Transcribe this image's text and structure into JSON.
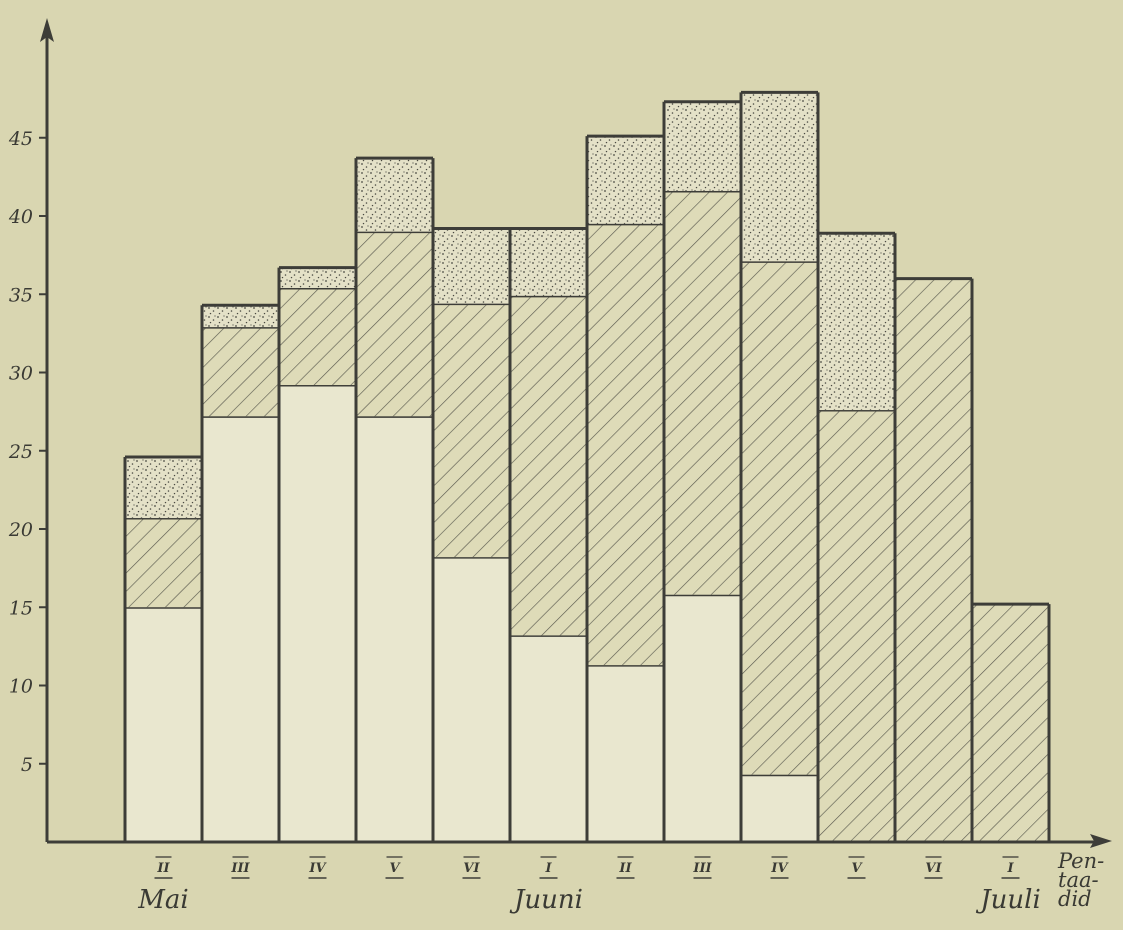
{
  "chart_data": {
    "type": "bar",
    "stacked": true,
    "title": "",
    "ylabel": "",
    "xlabel_lines": [
      "Pen-",
      "taa-",
      "did"
    ],
    "ylim": [
      0,
      50
    ],
    "yticks": [
      5,
      10,
      15,
      20,
      25,
      30,
      35,
      40,
      45
    ],
    "categories": [
      "II",
      "III",
      "IV",
      "V",
      "VI",
      "I",
      "II",
      "III",
      "IV",
      "V",
      "VI",
      "I"
    ],
    "month_labels": [
      {
        "label": "Mai",
        "at_category_index": 0
      },
      {
        "label": "Juuni",
        "at_category_index": 5
      },
      {
        "label": "Juuli",
        "at_category_index": 11
      }
    ],
    "series": [
      {
        "pattern": "plain",
        "values": [
          15,
          27.2,
          29.2,
          27.2,
          18.2,
          13.2,
          11.3,
          15.8,
          4.3,
          0,
          0,
          0
        ]
      },
      {
        "pattern": "hatched",
        "values": [
          5.7,
          5.7,
          6.2,
          11.8,
          16.2,
          21.7,
          28.2,
          25.8,
          32.8,
          27.6,
          36,
          15.2
        ]
      },
      {
        "pattern": "dotted",
        "values": [
          3.9,
          1.4,
          1.3,
          4.7,
          4.8,
          4.3,
          5.6,
          5.7,
          10.8,
          11.3,
          0,
          0
        ]
      }
    ],
    "colors": {
      "background": "#d9d6b1",
      "axis": "#3d3d38",
      "plain_fill": "#e9e7cf",
      "hatched_fill": "#dedbb8",
      "hatch_stroke": "#5b5b50",
      "dotted_fill": "#e4e1c7",
      "dot_color": "#4a4a42"
    },
    "grid": false,
    "legend": "none"
  }
}
